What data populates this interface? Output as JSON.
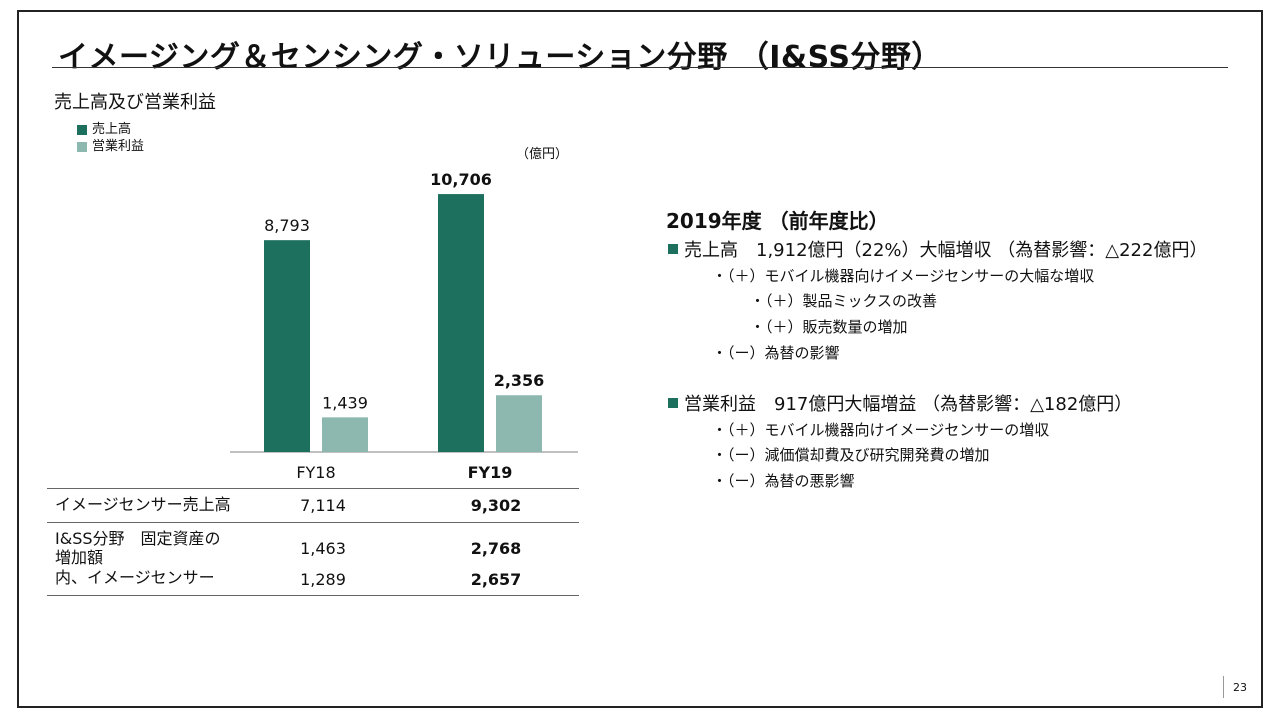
{
  "page": {
    "title": "イメージング＆センシング・ソリューション分野 （I&SS分野）",
    "page_number": "23"
  },
  "left": {
    "subtitle": "売上高及び営業利益",
    "legend": [
      {
        "label": "売上高",
        "color": "#1d6f5e"
      },
      {
        "label": "営業利益",
        "color": "#8db8b0"
      }
    ],
    "unit": "（億円）"
  },
  "chart_data": {
    "type": "bar",
    "categories": [
      "FY18",
      "FY19"
    ],
    "series": [
      {
        "name": "売上高",
        "values": [
          8793,
          10706
        ],
        "labels": [
          "8,793",
          "10,706"
        ],
        "color": "#1d6f5e",
        "label_bold": [
          false,
          true
        ]
      },
      {
        "name": "営業利益",
        "values": [
          1439,
          2356
        ],
        "labels": [
          "1,439",
          "2,356"
        ],
        "color": "#8db8b0",
        "label_bold": [
          false,
          true
        ]
      }
    ],
    "category_bold": [
      false,
      true
    ],
    "ylim": [
      0,
      11000
    ]
  },
  "table": {
    "rows": [
      {
        "label": "イメージセンサー売上高",
        "fy18": "7,114",
        "fy19": "9,302"
      },
      {
        "label": "I&SS分野　固定資産の",
        "label2": "増加額",
        "fy18": "1,463",
        "fy19": "2,768"
      },
      {
        "label": "内、イメージセンサー",
        "fy18": "1,289",
        "fy19": "2,657"
      }
    ]
  },
  "right": {
    "title": "2019年度 （前年度比）",
    "sections": [
      {
        "heading": "売上高　1,912億円（22%）大幅増収 （為替影響：△222億円）",
        "items": [
          "・（＋）モバイル機器向けイメージセンサーの大幅な増収",
          "・（＋）製品ミックスの改善",
          "・（＋）販売数量の増加",
          "・（ー）為替の影響"
        ]
      },
      {
        "heading": "営業利益　917億円大幅増益 （為替影響：△182億円）",
        "items": [
          "・（＋）モバイル機器向けイメージセンサーの増収",
          "・（ー）減価償却費及び研究開発費の増加",
          "・（ー）為替の悪影響"
        ]
      }
    ]
  }
}
